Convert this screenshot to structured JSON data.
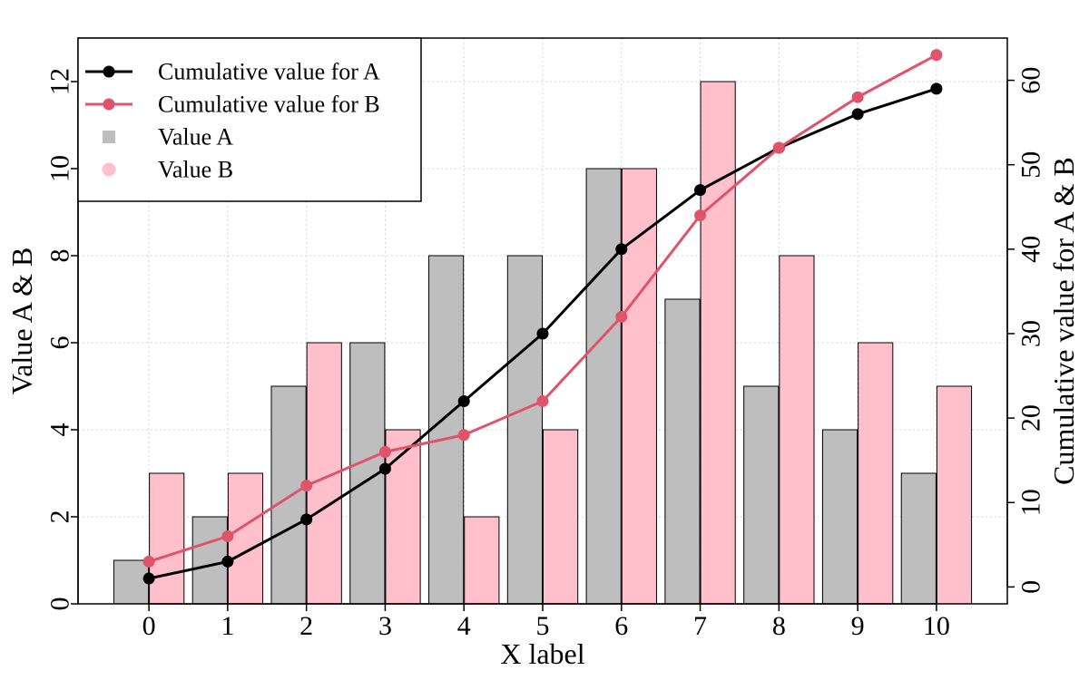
{
  "chart_data": {
    "type": "bar",
    "x": [
      0,
      1,
      2,
      3,
      4,
      5,
      6,
      7,
      8,
      9,
      10
    ],
    "xlabel": "X label",
    "ylabel": "Value A & B",
    "y2label": "Cumulative value for A & B",
    "ylim": [
      0,
      13
    ],
    "y2lim": [
      -2,
      65
    ],
    "yticks": [
      0,
      2,
      4,
      6,
      8,
      10,
      12
    ],
    "y2ticks": [
      0,
      10,
      20,
      30,
      40,
      50,
      60
    ],
    "grid": true,
    "legend_position": "top-left",
    "series": [
      {
        "name": "Value A",
        "type": "bar",
        "axis": "left",
        "color": "#bebebe",
        "values": [
          1,
          2,
          5,
          6,
          8,
          8,
          10,
          7,
          5,
          4,
          3
        ]
      },
      {
        "name": "Value B",
        "type": "bar",
        "axis": "left",
        "color": "#ffc0cb",
        "values": [
          3,
          3,
          6,
          4,
          2,
          4,
          10,
          12,
          8,
          6,
          5
        ]
      },
      {
        "name": "Cumulative value for A",
        "type": "line",
        "axis": "right",
        "color": "#000000",
        "values": [
          1,
          3,
          8,
          14,
          22,
          30,
          40,
          47,
          52,
          56,
          59
        ]
      },
      {
        "name": "Cumulative value for B",
        "type": "line",
        "axis": "right",
        "color": "#df536b",
        "values": [
          3,
          6,
          12,
          16,
          18,
          22,
          32,
          44,
          52,
          58,
          63
        ]
      }
    ],
    "legend": [
      {
        "label": "Cumulative value for A",
        "kind": "line",
        "color": "#000000"
      },
      {
        "label": "Cumulative value for B",
        "kind": "line",
        "color": "#df536b"
      },
      {
        "label": "Value A",
        "kind": "square",
        "color": "#bebebe"
      },
      {
        "label": "Value B",
        "kind": "circle",
        "color": "#ffc0cb"
      }
    ]
  }
}
